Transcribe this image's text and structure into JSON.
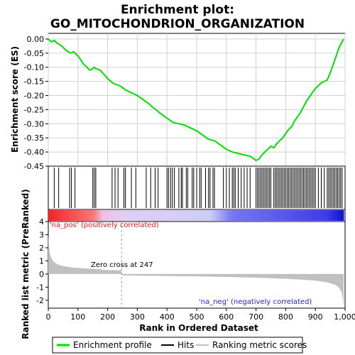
{
  "chart_data": {
    "type": "line",
    "title_line1": "Enrichment plot:",
    "title_line2": "GO_MITOCHONDRION_ORGANIZATION",
    "es_ylabel": "Enrichment score (ES)",
    "rank_ylabel": "Ranked list metric (PreRanked)",
    "xlabel": "Rank in Ordered Dataset",
    "xlim": [
      0,
      1000
    ],
    "x_ticks": [
      "0",
      "100",
      "200",
      "300",
      "400",
      "500",
      "600",
      "700",
      "800",
      "900",
      "1,000"
    ],
    "x_tick_values": [
      0,
      100,
      200,
      300,
      400,
      500,
      600,
      700,
      800,
      900,
      1000
    ],
    "es_ylim": [
      -0.45,
      0.02
    ],
    "es_y_ticks": [
      "0.00",
      "-0.05",
      "-0.10",
      "-0.15",
      "-0.20",
      "-0.25",
      "-0.30",
      "-0.35",
      "-0.40",
      "-0.45"
    ],
    "es_y_tick_values": [
      0,
      -0.05,
      -0.1,
      -0.15,
      -0.2,
      -0.25,
      -0.3,
      -0.35,
      -0.4,
      -0.45
    ],
    "rank_ylim": [
      -2.6,
      4
    ],
    "rank_y_ticks": [
      "4",
      "3",
      "2",
      "1",
      "0",
      "-1",
      "-2"
    ],
    "rank_y_tick_values": [
      4,
      3,
      2,
      1,
      0,
      -1,
      -2
    ],
    "zero_cross_label": "Zero cross at 247",
    "zero_cross_rank": 247,
    "pos_label": "'na_pos' (positively correlated)",
    "neg_label": "'na_neg' (negatively correlated)",
    "total_ranks": 995,
    "enrichment_profile": {
      "x": [
        0,
        10,
        20,
        30,
        40,
        50,
        60,
        75,
        85,
        100,
        110,
        120,
        130,
        140,
        150,
        155,
        160,
        175,
        200,
        220,
        240,
        250,
        260,
        280,
        300,
        320,
        340,
        350,
        360,
        380,
        400,
        420,
        440,
        460,
        480,
        500,
        520,
        540,
        560,
        580,
        600,
        620,
        640,
        660,
        680,
        700,
        710,
        720,
        730,
        740,
        750,
        760,
        770,
        780,
        790,
        800,
        810,
        820,
        830,
        840,
        850,
        860,
        870,
        880,
        890,
        900,
        910,
        920,
        930,
        940,
        950,
        960,
        970,
        980,
        990,
        995
      ],
      "y": [
        0,
        -0.01,
        -0.005,
        -0.015,
        -0.02,
        -0.03,
        -0.04,
        -0.05,
        -0.045,
        -0.06,
        -0.075,
        -0.09,
        -0.1,
        -0.11,
        -0.105,
        -0.1,
        -0.105,
        -0.11,
        -0.14,
        -0.158,
        -0.165,
        -0.172,
        -0.18,
        -0.19,
        -0.2,
        -0.215,
        -0.23,
        -0.24,
        -0.248,
        -0.265,
        -0.28,
        -0.295,
        -0.3,
        -0.305,
        -0.315,
        -0.325,
        -0.34,
        -0.355,
        -0.36,
        -0.375,
        -0.39,
        -0.4,
        -0.405,
        -0.41,
        -0.415,
        -0.43,
        -0.425,
        -0.41,
        -0.4,
        -0.39,
        -0.38,
        -0.385,
        -0.37,
        -0.36,
        -0.35,
        -0.335,
        -0.32,
        -0.31,
        -0.29,
        -0.275,
        -0.26,
        -0.24,
        -0.22,
        -0.205,
        -0.19,
        -0.175,
        -0.165,
        -0.155,
        -0.15,
        -0.145,
        -0.12,
        -0.09,
        -0.06,
        -0.03,
        -0.01,
        0.0
      ]
    },
    "hits": [
      20,
      35,
      72,
      78,
      90,
      150,
      155,
      160,
      215,
      225,
      235,
      255,
      260,
      280,
      295,
      330,
      345,
      360,
      370,
      400,
      405,
      412,
      418,
      425,
      440,
      448,
      452,
      465,
      470,
      485,
      490,
      500,
      510,
      515,
      530,
      540,
      545,
      555,
      560,
      590,
      600,
      610,
      620,
      625,
      630,
      640,
      650,
      660,
      670,
      680,
      700,
      705,
      710,
      715,
      720,
      725,
      730,
      735,
      740,
      745,
      750,
      760,
      765,
      770,
      775,
      780,
      785,
      790,
      795,
      800,
      805,
      810,
      815,
      820,
      825,
      830,
      835,
      840,
      845,
      850,
      855,
      860,
      865,
      870,
      875,
      880,
      885,
      890,
      895,
      900,
      910,
      920,
      930,
      940,
      945,
      950,
      955,
      960,
      965,
      970,
      975,
      980,
      985,
      990
    ],
    "ranked_metric": {
      "x": [
        0,
        5,
        10,
        20,
        30,
        50,
        80,
        120,
        160,
        200,
        247,
        248,
        300,
        400,
        500,
        600,
        700,
        800,
        850,
        900,
        930,
        950,
        970,
        980,
        988,
        993,
        995
      ],
      "y": [
        2.9,
        1.6,
        1.2,
        0.9,
        0.75,
        0.6,
        0.5,
        0.43,
        0.38,
        0.3,
        0.28,
        -0.1,
        -0.12,
        -0.15,
        -0.18,
        -0.22,
        -0.28,
        -0.36,
        -0.42,
        -0.5,
        -0.6,
        -0.7,
        -0.85,
        -1.05,
        -1.35,
        -2.0,
        -2.5
      ]
    },
    "colors": {
      "profile": "#00e000",
      "hits": "#000000",
      "metric_fill": "#c0c0c0",
      "pos_label": "#e02020",
      "neg_label": "#2020e0",
      "zero_line": "#999999"
    },
    "legend": [
      {
        "label": "Enrichment profile",
        "color": "#00e000"
      },
      {
        "label": "Hits",
        "color": "#000000"
      },
      {
        "label": "Ranking metric scores",
        "color": "#c0c0c0"
      }
    ],
    "legend_position": "bottom"
  }
}
